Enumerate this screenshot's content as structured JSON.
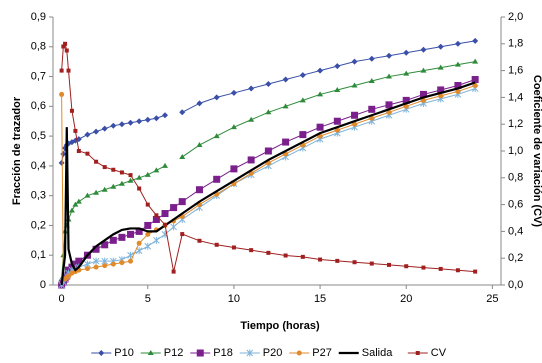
{
  "chart_data": {
    "type": "line",
    "x_label": "Tiempo (horas)",
    "y_label": "Fracción de trazador",
    "y2_label": "Coeficiente de variación (CV)",
    "x": [
      0,
      0.1,
      0.2,
      0.3,
      0.4,
      0.6,
      0.8,
      1,
      1.5,
      2,
      2.5,
      3,
      3.5,
      4,
      4.5,
      5,
      5.5,
      6,
      6.5,
      7,
      8,
      9,
      10,
      11,
      12,
      13,
      14,
      15,
      16,
      17,
      18,
      19,
      20,
      21,
      22,
      23,
      24
    ],
    "xlim": [
      -0.5,
      25.5
    ],
    "xticks": [
      0,
      5,
      10,
      15,
      20,
      25
    ],
    "ylim": [
      0,
      0.9
    ],
    "yticks": [
      0,
      {
        "value": 0.1,
        "label": "0,1"
      },
      {
        "value": 0.2,
        "label": "0,2"
      },
      {
        "value": 0.3,
        "label": "0,3"
      },
      {
        "value": 0.4,
        "label": "0,4"
      },
      {
        "value": 0.5,
        "label": "0,5"
      },
      {
        "value": 0.6,
        "label": "0,6"
      },
      {
        "value": 0.7,
        "label": "0,7"
      },
      {
        "value": 0.8,
        "label": "0,8"
      },
      {
        "value": 0.9,
        "label": "0,9"
      }
    ],
    "y2lim": [
      0,
      2
    ],
    "y2ticks": [
      {
        "value": 0,
        "label": "0,0"
      },
      {
        "value": 0.2,
        "label": "0,2"
      },
      {
        "value": 0.4,
        "label": "0,4"
      },
      {
        "value": 0.6,
        "label": "0,6"
      },
      {
        "value": 0.8,
        "label": "0,8"
      },
      {
        "value": 1,
        "label": "1,0"
      },
      {
        "value": 1.2,
        "label": "1,2"
      },
      {
        "value": 1.4,
        "label": "1,4"
      },
      {
        "value": 1.6,
        "label": "1,6"
      },
      {
        "value": 1.8,
        "label": "1,8"
      },
      {
        "value": 2,
        "label": "2,0"
      }
    ],
    "grid": false,
    "legend": "bottom",
    "series": [
      {
        "name": "P10",
        "color": "#3a4fa8",
        "marker": "diamond",
        "values": [
          0.41,
          0.44,
          0.46,
          0.47,
          0.475,
          0.48,
          0.485,
          0.49,
          0.505,
          0.515,
          0.525,
          0.535,
          0.54,
          0.545,
          0.55,
          0.555,
          0.56,
          0.57,
          null,
          0.58,
          0.61,
          0.63,
          0.645,
          0.66,
          0.675,
          0.69,
          0.705,
          0.72,
          0.735,
          0.75,
          0.76,
          0.77,
          0.78,
          0.79,
          0.8,
          0.81,
          0.82
        ]
      },
      {
        "name": "P12",
        "color": "#2e8b3a",
        "marker": "triangle",
        "values": [
          0.02,
          0.1,
          0.18,
          0.2,
          0.22,
          0.25,
          0.27,
          0.28,
          0.3,
          0.31,
          0.32,
          0.33,
          0.34,
          0.35,
          0.36,
          0.37,
          0.385,
          0.4,
          null,
          0.43,
          0.47,
          0.5,
          0.53,
          0.555,
          0.58,
          0.6,
          0.62,
          0.64,
          0.655,
          0.67,
          0.685,
          0.7,
          0.71,
          0.72,
          0.73,
          0.74,
          0.75
        ]
      },
      {
        "name": "P18",
        "color": "#7a1f8c",
        "marker": "square",
        "values": [
          0,
          0.01,
          0.02,
          0.03,
          0.05,
          0.06,
          0.07,
          0.08,
          0.1,
          0.12,
          0.135,
          0.15,
          0.16,
          0.17,
          0.18,
          0.2,
          0.22,
          0.24,
          0.26,
          0.28,
          0.32,
          0.355,
          0.39,
          0.42,
          0.45,
          0.48,
          0.505,
          0.53,
          0.55,
          0.57,
          0.59,
          0.605,
          0.62,
          0.64,
          0.655,
          0.67,
          0.69
        ]
      },
      {
        "name": "P20",
        "color": "#7fb3d9",
        "marker": "star",
        "values": [
          0,
          0.01,
          0.02,
          0.03,
          0.04,
          0.05,
          0.055,
          0.06,
          0.07,
          0.08,
          0.08,
          0.08,
          0.085,
          0.1,
          0.115,
          0.13,
          0.15,
          0.17,
          0.195,
          0.22,
          0.26,
          0.3,
          0.34,
          0.37,
          0.4,
          0.43,
          0.46,
          0.49,
          0.51,
          0.53,
          0.55,
          0.57,
          0.59,
          0.61,
          0.625,
          0.64,
          0.66
        ]
      },
      {
        "name": "P27",
        "color": "#e08a2c",
        "marker": "circle",
        "values": [
          0.64,
          0.02,
          0.02,
          0.025,
          0.03,
          0.04,
          0.045,
          0.05,
          0.055,
          0.06,
          0.065,
          0.07,
          0.075,
          0.08,
          0.14,
          0.17,
          0.185,
          0.2,
          0.215,
          0.23,
          0.27,
          0.305,
          0.34,
          0.375,
          0.41,
          0.44,
          0.47,
          0.5,
          0.52,
          0.54,
          0.56,
          0.58,
          0.6,
          0.62,
          0.635,
          0.65,
          0.67
        ]
      },
      {
        "name": "Salida",
        "color": "#000000",
        "marker": "none",
        "values": [
          0,
          0.05,
          0.1,
          0.53,
          0.12,
          0.07,
          0.05,
          0.06,
          0.1,
          0.13,
          0.15,
          0.17,
          0.185,
          0.19,
          0.19,
          0.18,
          0.18,
          0.2,
          0.22,
          0.24,
          0.28,
          0.315,
          0.35,
          0.385,
          0.42,
          0.45,
          0.48,
          0.51,
          0.53,
          0.55,
          0.57,
          0.59,
          0.61,
          0.63,
          0.645,
          0.66,
          0.68
        ]
      },
      {
        "name": "CV",
        "color": "#a02020",
        "marker": "smallsquare",
        "axis": "y2",
        "values": [
          1.6,
          1.78,
          1.8,
          1.75,
          1.6,
          1.3,
          1.15,
          1,
          0.98,
          0.92,
          0.88,
          0.86,
          0.84,
          0.82,
          0.72,
          0.6,
          0.52,
          0.45,
          0.1,
          0.38,
          0.33,
          0.3,
          0.28,
          0.26,
          0.24,
          0.22,
          0.21,
          0.19,
          0.18,
          0.17,
          0.16,
          0.15,
          0.14,
          0.13,
          0.12,
          0.11,
          0.1
        ]
      }
    ]
  }
}
